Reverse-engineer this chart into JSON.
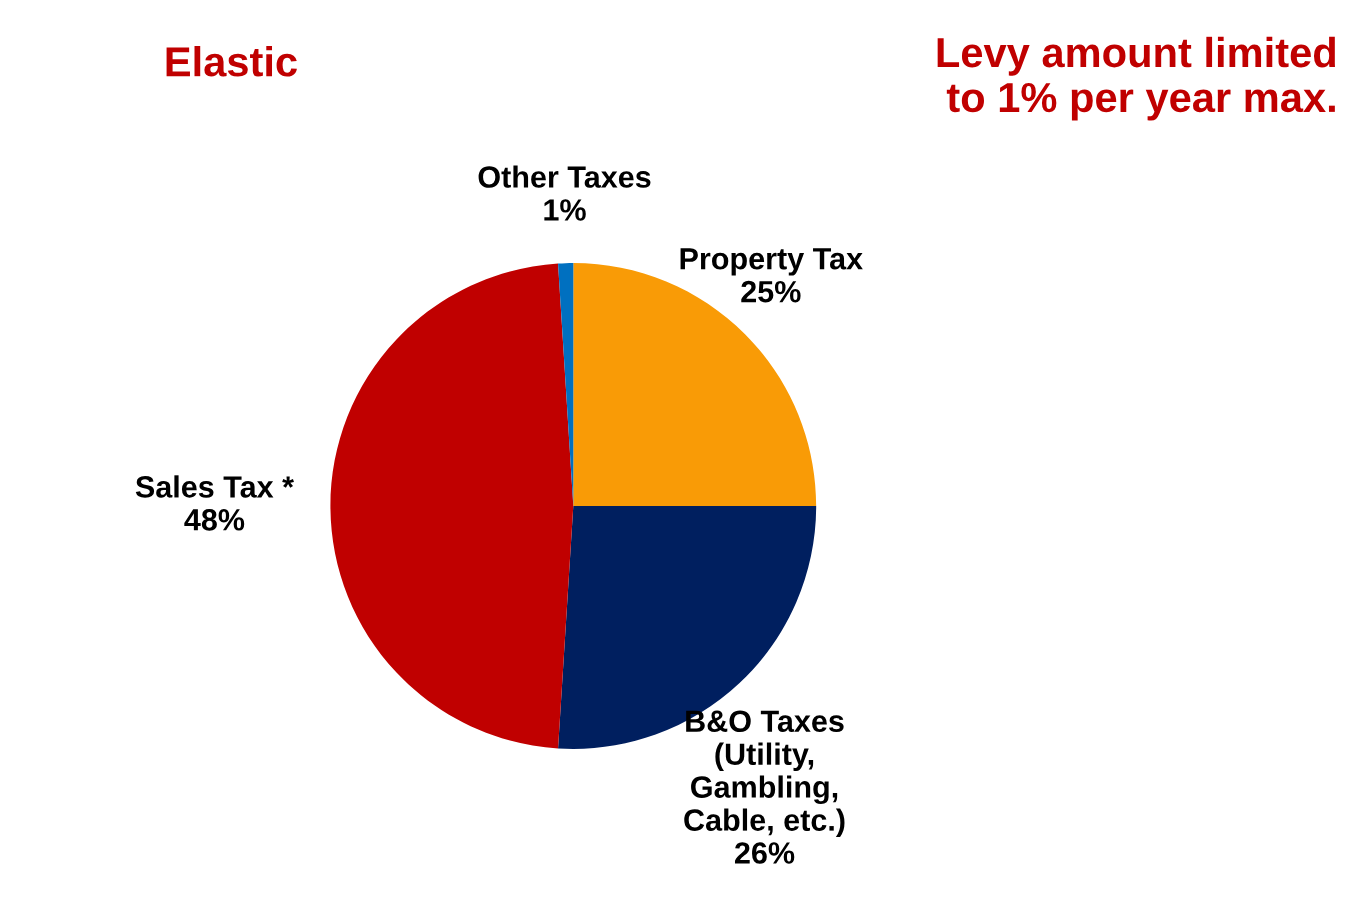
{
  "chart_data": {
    "type": "pie",
    "categories": [
      "Property Tax",
      "B&O Taxes\n(Utility,\nGambling,\nCable, etc.)",
      "Sales Tax *",
      "Other Taxes"
    ],
    "values": [
      25,
      26,
      48,
      1
    ],
    "value_labels": [
      "25%",
      "26%",
      "48%",
      "1%"
    ],
    "colors": [
      "#f99b06",
      "#001f5f",
      "#c00000",
      "#0070c0"
    ],
    "annotations": [
      "Elastic",
      "Levy amount limited\nto 1% per year max."
    ],
    "legend": false
  }
}
